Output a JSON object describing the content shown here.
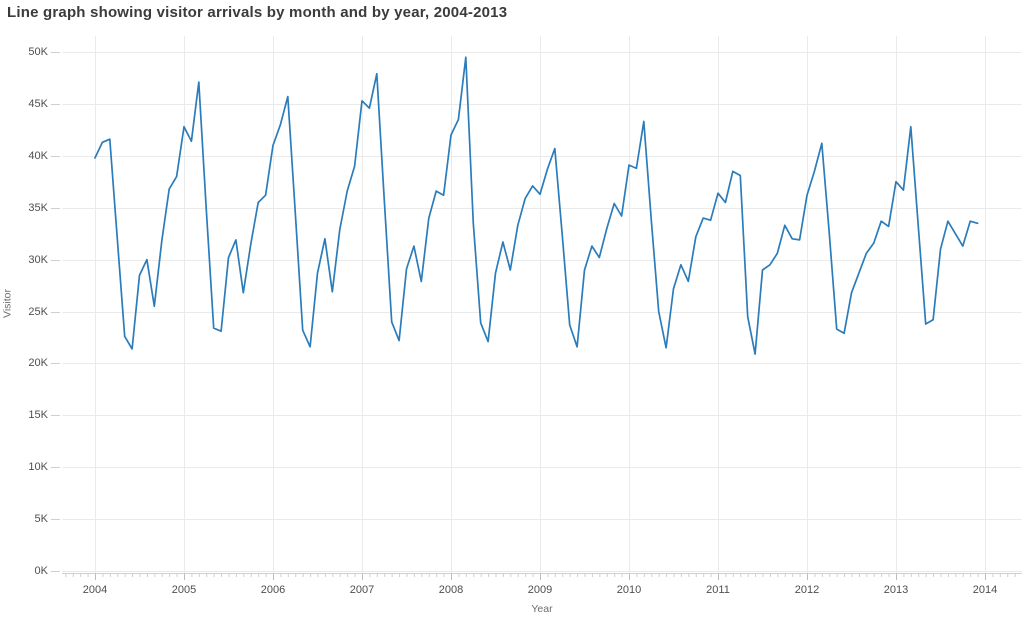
{
  "chart_data": {
    "type": "line",
    "title": "Line graph showing visitor arrivals by month and by year, 2004-2013",
    "xlabel": "Year",
    "ylabel": "Visitor",
    "unit": "thousands of visitor arrivals per month",
    "x_tick_labels": [
      "2004",
      "2005",
      "2006",
      "2007",
      "2008",
      "2009",
      "2010",
      "2011",
      "2012",
      "2013",
      "2014"
    ],
    "y_tick_labels": [
      "0K",
      "5K",
      "10K",
      "15K",
      "20K",
      "25K",
      "30K",
      "35K",
      "40K",
      "45K",
      "50K"
    ],
    "ylim_thousands": [
      0,
      51.5
    ],
    "xlim_years": [
      2003.6,
      2014.4
    ],
    "grid": true,
    "legend": "none",
    "values_order": "Jan through Dec",
    "series": [
      {
        "name": "Visitor arrivals",
        "frequency": "monthly",
        "years": [
          {
            "year": 2004,
            "values": [
              39.8,
              41.3,
              41.6,
              32.0,
              22.6,
              21.4,
              28.5,
              30.0,
              25.5,
              31.8,
              36.8,
              38.0
            ]
          },
          {
            "year": 2005,
            "values": [
              42.8,
              41.4,
              47.1,
              34.8,
              23.4,
              23.1,
              30.2,
              31.9,
              26.8,
              31.5,
              35.5,
              36.2
            ]
          },
          {
            "year": 2006,
            "values": [
              41.0,
              43.0,
              45.7,
              34.5,
              23.2,
              21.6,
              28.7,
              32.0,
              26.9,
              32.9,
              36.6,
              39.0
            ]
          },
          {
            "year": 2007,
            "values": [
              45.3,
              44.6,
              47.9,
              35.7,
              24.0,
              22.2,
              29.1,
              31.3,
              27.9,
              34.0,
              36.6,
              36.2
            ]
          },
          {
            "year": 2008,
            "values": [
              42.0,
              43.5,
              49.5,
              33.5,
              23.9,
              22.1,
              28.7,
              31.7,
              29.0,
              33.3,
              35.9,
              37.1
            ]
          },
          {
            "year": 2009,
            "values": [
              36.3,
              38.7,
              40.7,
              32.3,
              23.7,
              21.6,
              29.0,
              31.3,
              30.2,
              33.0,
              35.4,
              34.2
            ]
          },
          {
            "year": 2010,
            "values": [
              39.1,
              38.8,
              43.3,
              33.8,
              25.0,
              21.5,
              27.2,
              29.5,
              27.9,
              32.2,
              34.0,
              33.8
            ]
          },
          {
            "year": 2011,
            "values": [
              36.4,
              35.5,
              38.5,
              38.1,
              24.5,
              20.9,
              29.0,
              29.5,
              30.6,
              33.3,
              32.0,
              31.9
            ]
          },
          {
            "year": 2012,
            "values": [
              36.2,
              38.5,
              41.2,
              32.5,
              23.3,
              22.9,
              26.8,
              28.7,
              30.6,
              31.6,
              33.7,
              33.2
            ]
          },
          {
            "year": 2013,
            "values": [
              37.5,
              36.7,
              42.8,
              33.2,
              23.8,
              24.2,
              31.0,
              33.7,
              32.5,
              31.3,
              33.7,
              33.5
            ]
          }
        ]
      }
    ],
    "style": {
      "line_color": "#2b7cba",
      "gridline_color": "#eaeaea",
      "axis_line_color": "#cfcfcf",
      "major_tick_color": "#bdbdbd",
      "minor_tick_color": "#cfcfcf",
      "tick_label_color": "#4f4f4f",
      "axis_title_color": "#6e6e6e",
      "title_color": "#3b3b3b",
      "background_color": "#ffffff"
    }
  }
}
